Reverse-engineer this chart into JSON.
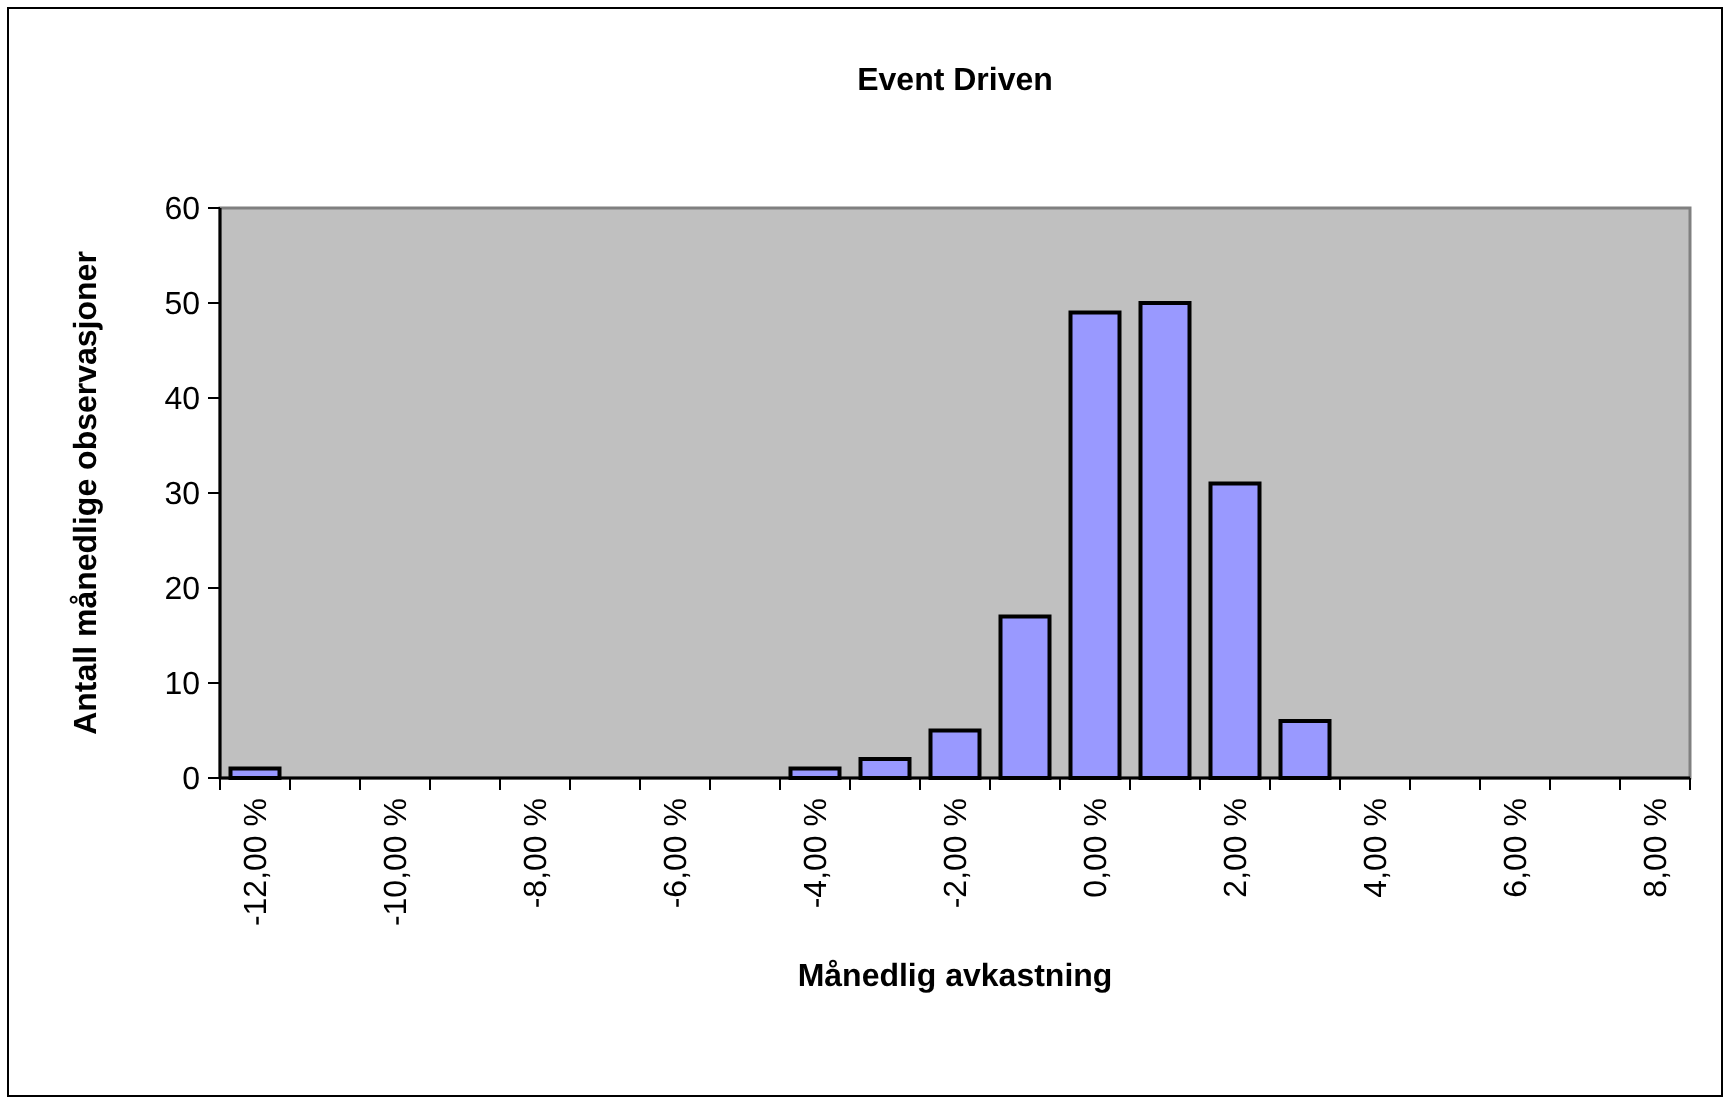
{
  "chart_data": {
    "type": "bar",
    "title": "Event Driven",
    "xlabel": "Månedlig avkastning",
    "ylabel": "Antall månedlige observasjoner",
    "categories": [
      "-12,00 %",
      null,
      "-10,00 %",
      null,
      "-8,00 %",
      null,
      "-6,00 %",
      null,
      "-4,00 %",
      null,
      "-2,00 %",
      null,
      "0,00 %",
      null,
      "2,00 %",
      null,
      "4,00 %",
      null,
      "6,00 %",
      null,
      "8,00 %"
    ],
    "values": [
      1,
      0,
      0,
      0,
      0,
      0,
      0,
      0,
      1,
      2,
      5,
      17,
      49,
      50,
      31,
      6,
      0,
      0,
      0,
      0,
      0
    ],
    "color": "#9999ff",
    "ylim": [
      0,
      60
    ],
    "yticks": [
      0,
      10,
      20,
      30,
      40,
      50,
      60
    ],
    "grid": false
  }
}
